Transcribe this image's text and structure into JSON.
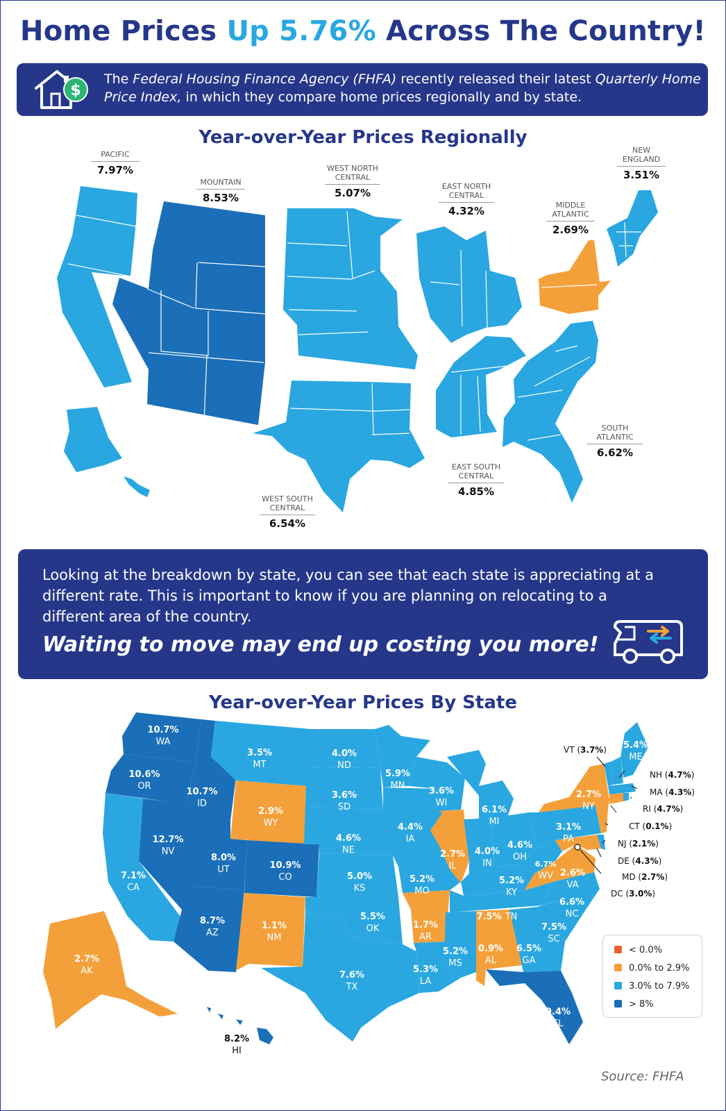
{
  "headline": {
    "part1": "Home Prices ",
    "highlight": "Up 5.76%",
    "part2": " Across The Country!"
  },
  "intro": {
    "icon": "house-dollar-icon",
    "t1": "The ",
    "t2": "Federal Housing Finance Agency (FHFA)",
    "t3": " recently released their latest ",
    "t4": "Quarterly Home Price Index,",
    "t5": " in which they compare home prices regionally and by state."
  },
  "regional": {
    "title": "Year-over-Year Prices Regionally",
    "regions": [
      {
        "name": "PACIFIC",
        "value": "7.97%"
      },
      {
        "name": "MOUNTAIN",
        "value": "8.53%"
      },
      {
        "name": "WEST NORTH CENTRAL",
        "value": "5.07%"
      },
      {
        "name": "EAST NORTH CENTRAL",
        "value": "4.32%"
      },
      {
        "name": "MIDDLE ATLANTIC",
        "value": "2.69%"
      },
      {
        "name": "NEW ENGLAND",
        "value": "3.51%"
      },
      {
        "name": "SOUTH ATLANTIC",
        "value": "6.62%"
      },
      {
        "name": "EAST SOUTH CENTRAL",
        "value": "4.85%"
      },
      {
        "name": "WEST SOUTH CENTRAL",
        "value": "6.54%"
      }
    ]
  },
  "middle": {
    "body": "Looking at the breakdown by state, you can see that each state is appreciating at a different rate. This is important to know if you are planning on relocating to a different area of the country.",
    "cta": "Waiting to move may end up costing you more!",
    "icon": "moving-van-icon"
  },
  "states": {
    "title": "Year-over-Year Prices By State",
    "items": [
      {
        "abbr": "WA",
        "value": "10.7%"
      },
      {
        "abbr": "OR",
        "value": "10.6%"
      },
      {
        "abbr": "ID",
        "value": "10.7%"
      },
      {
        "abbr": "MT",
        "value": "3.5%"
      },
      {
        "abbr": "ND",
        "value": "4.0%"
      },
      {
        "abbr": "MN",
        "value": "5.9%"
      },
      {
        "abbr": "WI",
        "value": "3.6%"
      },
      {
        "abbr": "MI",
        "value": "6.1%"
      },
      {
        "abbr": "ME",
        "value": "5.4%"
      },
      {
        "abbr": "SD",
        "value": "3.6%"
      },
      {
        "abbr": "WY",
        "value": "2.9%"
      },
      {
        "abbr": "NY",
        "value": "2.7%"
      },
      {
        "abbr": "NV",
        "value": "12.7%"
      },
      {
        "abbr": "UT",
        "value": "8.0%"
      },
      {
        "abbr": "CO",
        "value": "10.9%"
      },
      {
        "abbr": "NE",
        "value": "4.6%"
      },
      {
        "abbr": "IA",
        "value": "4.4%"
      },
      {
        "abbr": "IL",
        "value": "2.7%"
      },
      {
        "abbr": "IN",
        "value": "4.0%"
      },
      {
        "abbr": "OH",
        "value": "4.6%"
      },
      {
        "abbr": "PA",
        "value": "3.1%"
      },
      {
        "abbr": "CA",
        "value": "7.1%"
      },
      {
        "abbr": "KS",
        "value": "5.0%"
      },
      {
        "abbr": "MO",
        "value": "5.2%"
      },
      {
        "abbr": "KY",
        "value": "5.2%"
      },
      {
        "abbr": "WV",
        "value": "6.7%"
      },
      {
        "abbr": "VA",
        "value": "2.6%"
      },
      {
        "abbr": "AZ",
        "value": "8.7%"
      },
      {
        "abbr": "NM",
        "value": "1.1%"
      },
      {
        "abbr": "OK",
        "value": "5.5%"
      },
      {
        "abbr": "AR",
        "value": "1.7%"
      },
      {
        "abbr": "TN",
        "value": "7.5%"
      },
      {
        "abbr": "NC",
        "value": "6.6%"
      },
      {
        "abbr": "SC",
        "value": "7.5%"
      },
      {
        "abbr": "TX",
        "value": "7.6%"
      },
      {
        "abbr": "LA",
        "value": "5.3%"
      },
      {
        "abbr": "MS",
        "value": "5.2%"
      },
      {
        "abbr": "AL",
        "value": "0.9%"
      },
      {
        "abbr": "GA",
        "value": "6.5%"
      },
      {
        "abbr": "FL",
        "value": "9.4%"
      },
      {
        "abbr": "AK",
        "value": "2.7%"
      },
      {
        "abbr": "HI",
        "value": "8.2%"
      }
    ],
    "callouts": [
      {
        "abbr": "VT",
        "value": "3.7%"
      },
      {
        "abbr": "NH",
        "value": "4.7%"
      },
      {
        "abbr": "MA",
        "value": "4.3%"
      },
      {
        "abbr": "RI",
        "value": "4.7%"
      },
      {
        "abbr": "CT",
        "value": "0.1%"
      },
      {
        "abbr": "NJ",
        "value": "2.1%"
      },
      {
        "abbr": "DE",
        "value": "4.3%"
      },
      {
        "abbr": "MD",
        "value": "2.7%"
      },
      {
        "abbr": "DC",
        "value": "3.0%"
      }
    ]
  },
  "legend": [
    {
      "label": "< 0.0%",
      "color": "#e8632b"
    },
    {
      "label": "0.0% to 2.9%",
      "color": "#f4a03a"
    },
    {
      "label": "3.0% to 7.9%",
      "color": "#2aa7e0"
    },
    {
      "label": "> 8%",
      "color": "#1a6fb8"
    }
  ],
  "colors": {
    "navy": "#26378a",
    "light_blue": "#2aa7e0",
    "dark_blue": "#1a6fb8",
    "orange": "#f4a03a",
    "accent_green": "#2bb673"
  },
  "source": "Source: FHFA"
}
